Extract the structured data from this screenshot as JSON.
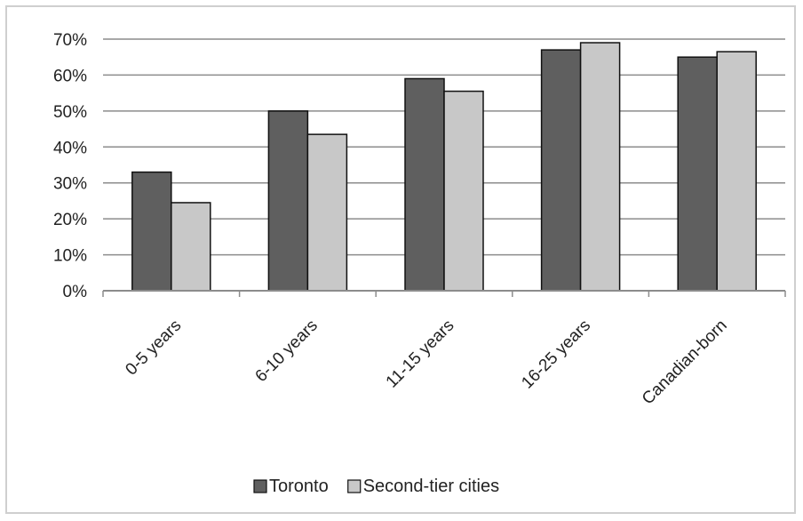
{
  "chart_data": {
    "type": "bar",
    "title": "",
    "xlabel": "",
    "ylabel": "",
    "categories": [
      "0-5 years",
      "6-10 years",
      "11-15 years",
      "16-25 years",
      "Canadian-born"
    ],
    "series": [
      {
        "name": "Toronto",
        "color": "#5f5f5f",
        "values": [
          33,
          50,
          59,
          67,
          65
        ]
      },
      {
        "name": "Second-tier cities",
        "color": "#c8c8c8",
        "values": [
          24.5,
          43.5,
          55.5,
          69,
          66.5
        ]
      }
    ],
    "ylim": [
      0,
      70
    ],
    "yticks": [
      0,
      10,
      20,
      30,
      40,
      50,
      60,
      70
    ],
    "ytick_format": "percent",
    "grid": true,
    "legend_position": "bottom"
  }
}
